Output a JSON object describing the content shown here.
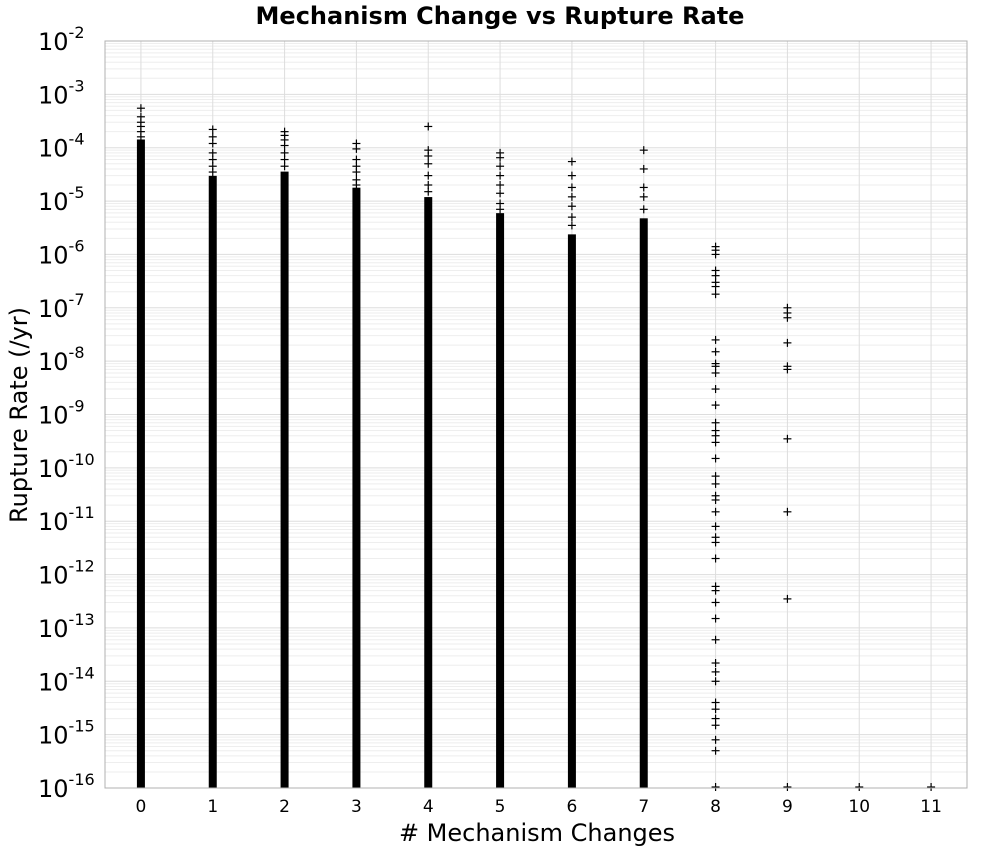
{
  "chart_data": {
    "type": "scatter",
    "title": "Mechanism Change vs Rupture Rate",
    "xlabel": "# Mechanism Changes",
    "ylabel": "Rupture Rate (/yr)",
    "xlim": [
      -0.5,
      11.5
    ],
    "ylim": [
      1e-16,
      0.01
    ],
    "yscale": "log",
    "xticks": [
      "0",
      "1",
      "2",
      "3",
      "4",
      "5",
      "6",
      "7",
      "8",
      "9",
      "10",
      "11"
    ],
    "yticks": [
      {
        "base": "10",
        "exp": "-2"
      },
      {
        "base": "10",
        "exp": "-3"
      },
      {
        "base": "10",
        "exp": "-4"
      },
      {
        "base": "10",
        "exp": "-5"
      },
      {
        "base": "10",
        "exp": "-6"
      },
      {
        "base": "10",
        "exp": "-7"
      },
      {
        "base": "10",
        "exp": "-8"
      },
      {
        "base": "10",
        "exp": "-9"
      },
      {
        "base": "10",
        "exp": "-10"
      },
      {
        "base": "10",
        "exp": "-11"
      },
      {
        "base": "10",
        "exp": "-12"
      },
      {
        "base": "10",
        "exp": "-13"
      },
      {
        "base": "10",
        "exp": "-14"
      },
      {
        "base": "10",
        "exp": "-15"
      },
      {
        "base": "10",
        "exp": "-16"
      }
    ],
    "grid": true,
    "marker": "+",
    "marker_color": "#000000",
    "series": [
      {
        "x": 0,
        "dense_range": [
          1e-16,
          0.00012
        ],
        "outliers": [
          0.00055,
          0.00038,
          0.0003,
          0.00025,
          0.0002,
          0.00016
        ]
      },
      {
        "x": 1,
        "dense_range": [
          1e-16,
          2.5e-05
        ],
        "outliers": [
          0.00022,
          0.00016,
          0.00012,
          8e-05,
          6e-05,
          4.5e-05,
          3.5e-05
        ]
      },
      {
        "x": 2,
        "dense_range": [
          1e-16,
          3e-05
        ],
        "outliers": [
          0.0002,
          0.00017,
          0.00014,
          0.00011,
          8e-05,
          6e-05,
          4.5e-05
        ]
      },
      {
        "x": 3,
        "dense_range": [
          1e-16,
          1.5e-05
        ],
        "outliers": [
          0.00012,
          9.5e-05,
          6e-05,
          4.5e-05,
          3.5e-05,
          2.5e-05,
          2e-05
        ]
      },
      {
        "x": 4,
        "dense_range": [
          1e-16,
          1e-05
        ],
        "outliers": [
          0.00025,
          9e-05,
          7e-05,
          5e-05,
          3e-05,
          2e-05,
          1.5e-05
        ]
      },
      {
        "x": 5,
        "dense_range": [
          1e-16,
          5e-06
        ],
        "outliers": [
          8e-05,
          6.5e-05,
          4.5e-05,
          3e-05,
          2e-05,
          1.4e-05,
          9e-06,
          7e-06
        ]
      },
      {
        "x": 6,
        "dense_range": [
          1e-16,
          2e-06
        ],
        "outliers": [
          5.5e-05,
          3e-05,
          1.8e-05,
          1.2e-05,
          8e-06,
          5e-06,
          3.5e-06
        ]
      },
      {
        "x": 7,
        "dense_range": [
          1e-16,
          4e-06
        ],
        "outliers": [
          9e-05,
          4e-05,
          1.8e-05,
          1.2e-05,
          7e-06
        ]
      },
      {
        "x": 8,
        "dense_range": null,
        "outliers": [
          1.4e-06,
          1.2e-06,
          1e-06,
          5e-07,
          4e-07,
          3e-07,
          2.5e-07,
          1.8e-07,
          2.5e-08,
          1.5e-08,
          9e-09,
          8e-09,
          6e-09,
          3e-09,
          1.5e-09,
          7e-10,
          5e-10,
          4e-10,
          3e-10,
          1.5e-10,
          7e-11,
          5e-11,
          3e-11,
          2.5e-11,
          1.5e-11,
          8e-12,
          5e-12,
          4e-12,
          2e-12,
          6e-13,
          5e-13,
          3e-13,
          1.5e-13,
          6e-14,
          2.2e-14,
          1.5e-14,
          1e-14,
          4e-15,
          3e-15,
          2e-15,
          1.5e-15,
          8e-16,
          5e-16,
          1e-16
        ]
      },
      {
        "x": 9,
        "dense_range": null,
        "outliers": [
          1e-07,
          8e-08,
          6.5e-08,
          2.2e-08,
          8e-09,
          7e-09,
          3.5e-10,
          1.5e-11,
          3.5e-13,
          1e-16
        ]
      },
      {
        "x": 10,
        "dense_range": null,
        "outliers": [
          1e-16
        ]
      },
      {
        "x": 11,
        "dense_range": null,
        "outliers": [
          1e-16
        ]
      }
    ]
  }
}
